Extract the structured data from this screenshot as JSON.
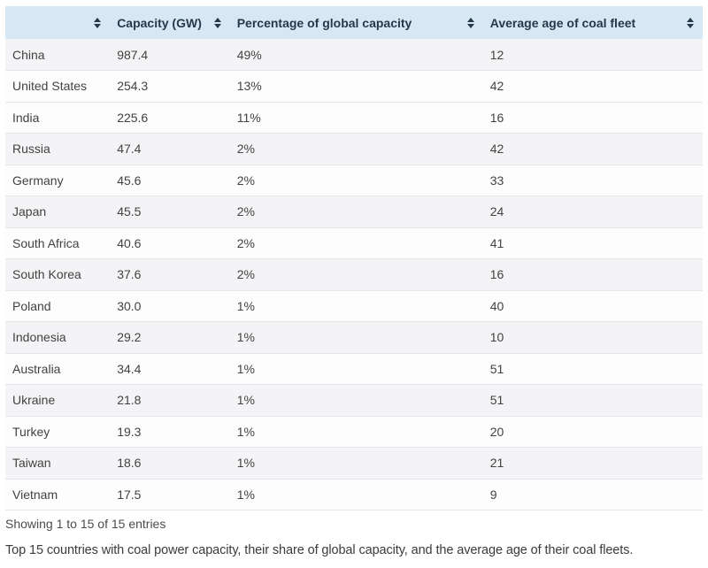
{
  "colors": {
    "header_bg": "#d7e8f4",
    "header_text": "#24394a",
    "body_text": "#424242",
    "row_shade": "#f4f4f7",
    "row_plain": "#fdfdfe",
    "row_border": "#e6e6ea"
  },
  "table": {
    "columns": [
      {
        "label": "",
        "sortable": true
      },
      {
        "label": "Capacity (GW)",
        "sortable": true
      },
      {
        "label": "Percentage of global capacity",
        "sortable": true
      },
      {
        "label": "Average age of coal fleet",
        "sortable": true
      }
    ],
    "rows": [
      {
        "country": "China",
        "capacity_gw": "987.4",
        "pct_global": "49%",
        "avg_age": "12"
      },
      {
        "country": "United States",
        "capacity_gw": "254.3",
        "pct_global": "13%",
        "avg_age": "42"
      },
      {
        "country": "India",
        "capacity_gw": "225.6",
        "pct_global": "11%",
        "avg_age": "16"
      },
      {
        "country": "Russia",
        "capacity_gw": "47.4",
        "pct_global": "2%",
        "avg_age": "42"
      },
      {
        "country": "Germany",
        "capacity_gw": "45.6",
        "pct_global": "2%",
        "avg_age": "33"
      },
      {
        "country": "Japan",
        "capacity_gw": "45.5",
        "pct_global": "2%",
        "avg_age": "24"
      },
      {
        "country": "South Africa",
        "capacity_gw": "40.6",
        "pct_global": "2%",
        "avg_age": "41"
      },
      {
        "country": "South Korea",
        "capacity_gw": "37.6",
        "pct_global": "2%",
        "avg_age": "16"
      },
      {
        "country": "Poland",
        "capacity_gw": "30.0",
        "pct_global": "1%",
        "avg_age": "40"
      },
      {
        "country": "Indonesia",
        "capacity_gw": "29.2",
        "pct_global": "1%",
        "avg_age": "10"
      },
      {
        "country": "Australia",
        "capacity_gw": "34.4",
        "pct_global": "1%",
        "avg_age": "51"
      },
      {
        "country": "Ukraine",
        "capacity_gw": "21.8",
        "pct_global": "1%",
        "avg_age": "51"
      },
      {
        "country": "Turkey",
        "capacity_gw": "19.3",
        "pct_global": "1%",
        "avg_age": "20"
      },
      {
        "country": "Taiwan",
        "capacity_gw": "18.6",
        "pct_global": "1%",
        "avg_age": "21"
      },
      {
        "country": "Vietnam",
        "capacity_gw": "17.5",
        "pct_global": "1%",
        "avg_age": "9"
      }
    ],
    "footer": "Showing 1 to 15 of 15 entries"
  },
  "caption": "Top 15 countries with coal power capacity, their share of global capacity, and the average age of their coal fleets."
}
